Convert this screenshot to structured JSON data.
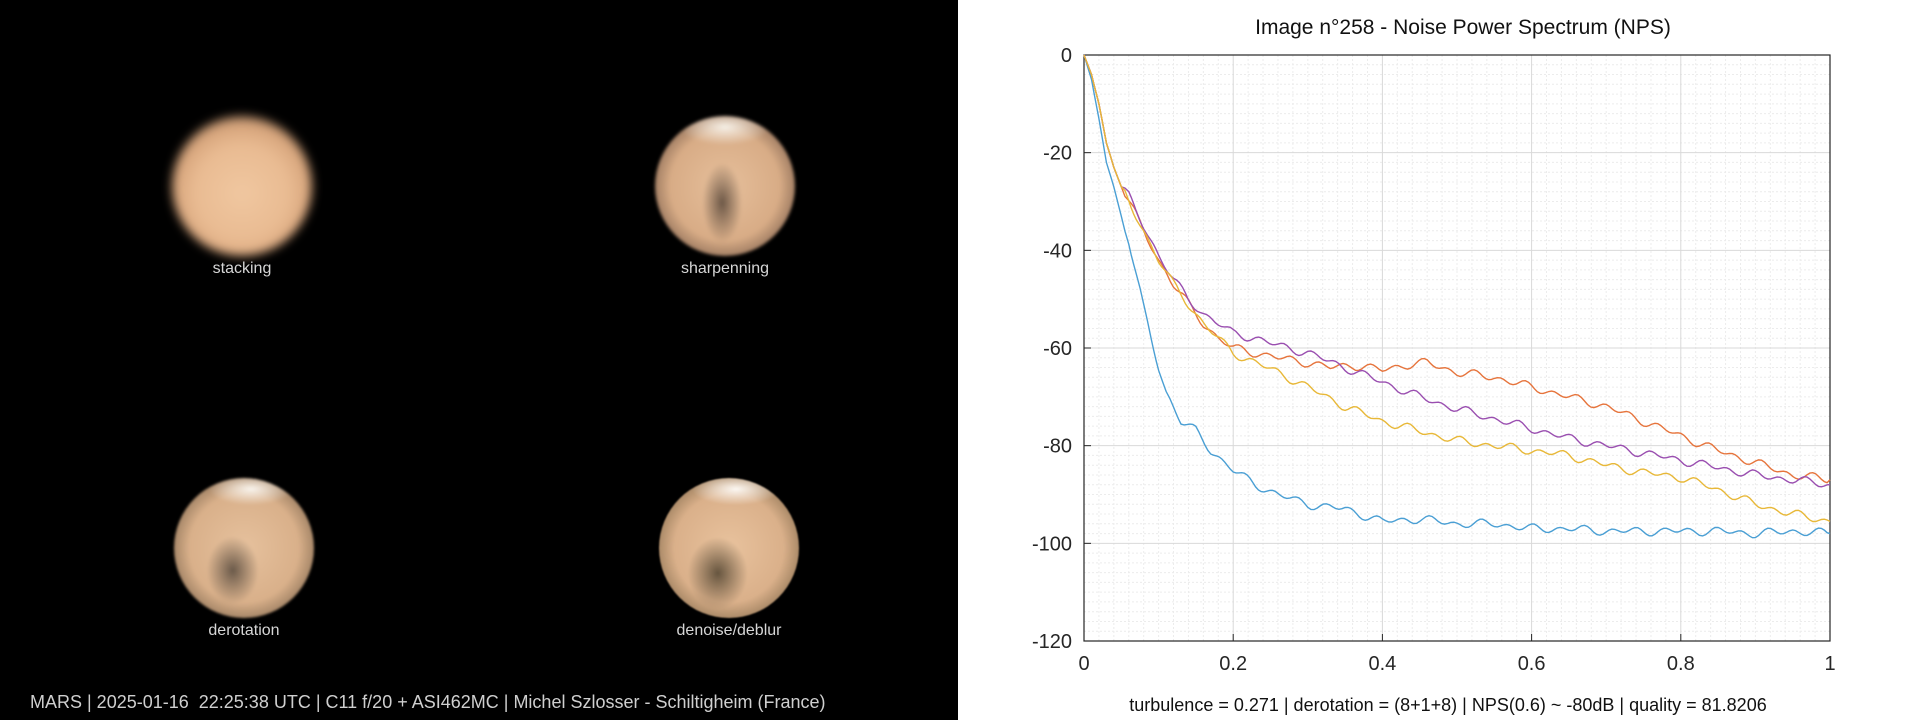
{
  "left_panel": {
    "tiles": [
      {
        "label": "stacking"
      },
      {
        "label": "sharpenning"
      },
      {
        "label": "derotation"
      },
      {
        "label": "denoise/deblur"
      }
    ],
    "caption": "MARS | 2025-01-16  22:25:38 UTC | C11 f/20 + ASI462MC | Michel Szlosser - Schiltigheim (France)"
  },
  "chart_data": {
    "type": "line",
    "title": "Image n°258 - Noise Power Spectrum (NPS)",
    "footer": "turbulence = 0.271 | derotation = (8+1+8) | NPS(0.6) ~ -80dB |  quality = 81.8206",
    "xlim": [
      0,
      1
    ],
    "ylim": [
      -120,
      0
    ],
    "x_ticks": [
      "0",
      "0.2",
      "0.4",
      "0.6",
      "0.8",
      "1"
    ],
    "y_ticks": [
      "0",
      "-20",
      "-40",
      "-60",
      "-80",
      "-100",
      "-120"
    ],
    "grid": true,
    "legend": "none",
    "series": [
      {
        "color": "#4a9fd4",
        "x": [
          0,
          0.01,
          0.02,
          0.03,
          0.04,
          0.05,
          0.06,
          0.07,
          0.08,
          0.09,
          0.1,
          0.11,
          0.12,
          0.13,
          0.15,
          0.17,
          0.2,
          0.23,
          0.26,
          0.3,
          0.35,
          0.4,
          0.45,
          0.5,
          0.55,
          0.6,
          0.65,
          0.7,
          0.75,
          0.8,
          0.85,
          0.9,
          0.95,
          1.0
        ],
        "y": [
          0,
          -5,
          -13,
          -22,
          -27,
          -33,
          -38,
          -45,
          -52,
          -58,
          -64,
          -69,
          -72,
          -75,
          -77,
          -81,
          -85,
          -88,
          -90,
          -92,
          -93,
          -95.5,
          -95,
          -96,
          -96,
          -97,
          -97,
          -97.5,
          -97.5,
          -97.5,
          -97.5,
          -98,
          -97.5,
          -98
        ]
      },
      {
        "color": "#e6743c",
        "x": [
          0,
          0.01,
          0.02,
          0.03,
          0.04,
          0.05,
          0.06,
          0.07,
          0.08,
          0.09,
          0.1,
          0.12,
          0.14,
          0.16,
          0.18,
          0.2,
          0.23,
          0.26,
          0.3,
          0.33,
          0.36,
          0.4,
          0.43,
          0.46,
          0.5,
          0.55,
          0.6,
          0.65,
          0.7,
          0.75,
          0.8,
          0.85,
          0.9,
          0.95,
          1.0
        ],
        "y": [
          0,
          -4,
          -10,
          -18,
          -23,
          -27,
          -30,
          -33,
          -36,
          -39,
          -42,
          -47,
          -51,
          -55,
          -58,
          -60,
          -61,
          -62,
          -63,
          -64,
          -63.5,
          -64.5,
          -63.5,
          -63,
          -65,
          -66,
          -68,
          -70,
          -72,
          -75,
          -78,
          -81,
          -83.5,
          -86,
          -87
        ]
      },
      {
        "color": "#9a4fb0",
        "x": [
          0,
          0.01,
          0.02,
          0.03,
          0.04,
          0.05,
          0.06,
          0.07,
          0.08,
          0.09,
          0.1,
          0.12,
          0.14,
          0.16,
          0.18,
          0.2,
          0.23,
          0.26,
          0.3,
          0.35,
          0.4,
          0.45,
          0.5,
          0.55,
          0.6,
          0.65,
          0.7,
          0.75,
          0.8,
          0.85,
          0.9,
          0.95,
          1.0
        ],
        "y": [
          0,
          -4,
          -10,
          -18,
          -23,
          -27,
          -29,
          -32,
          -35,
          -38,
          -41,
          -46,
          -50,
          -53,
          -55,
          -57,
          -58,
          -59.5,
          -61,
          -64,
          -67,
          -70,
          -72.5,
          -74.5,
          -76.5,
          -78.5,
          -80,
          -81.5,
          -83,
          -84.5,
          -86,
          -87,
          -88
        ]
      },
      {
        "color": "#e8b838",
        "x": [
          0,
          0.01,
          0.02,
          0.03,
          0.04,
          0.05,
          0.06,
          0.07,
          0.08,
          0.09,
          0.1,
          0.12,
          0.14,
          0.16,
          0.18,
          0.2,
          0.23,
          0.26,
          0.3,
          0.35,
          0.4,
          0.45,
          0.5,
          0.55,
          0.6,
          0.65,
          0.7,
          0.75,
          0.8,
          0.85,
          0.9,
          0.95,
          1.0
        ],
        "y": [
          0,
          -4,
          -10,
          -18,
          -23,
          -27,
          -30,
          -33,
          -36,
          -39,
          -42,
          -47,
          -51,
          -55,
          -58,
          -61,
          -63,
          -65,
          -68,
          -72,
          -75,
          -77,
          -79,
          -80,
          -81,
          -82,
          -84,
          -85.5,
          -86.5,
          -89,
          -92,
          -94,
          -95.5
        ]
      }
    ]
  }
}
